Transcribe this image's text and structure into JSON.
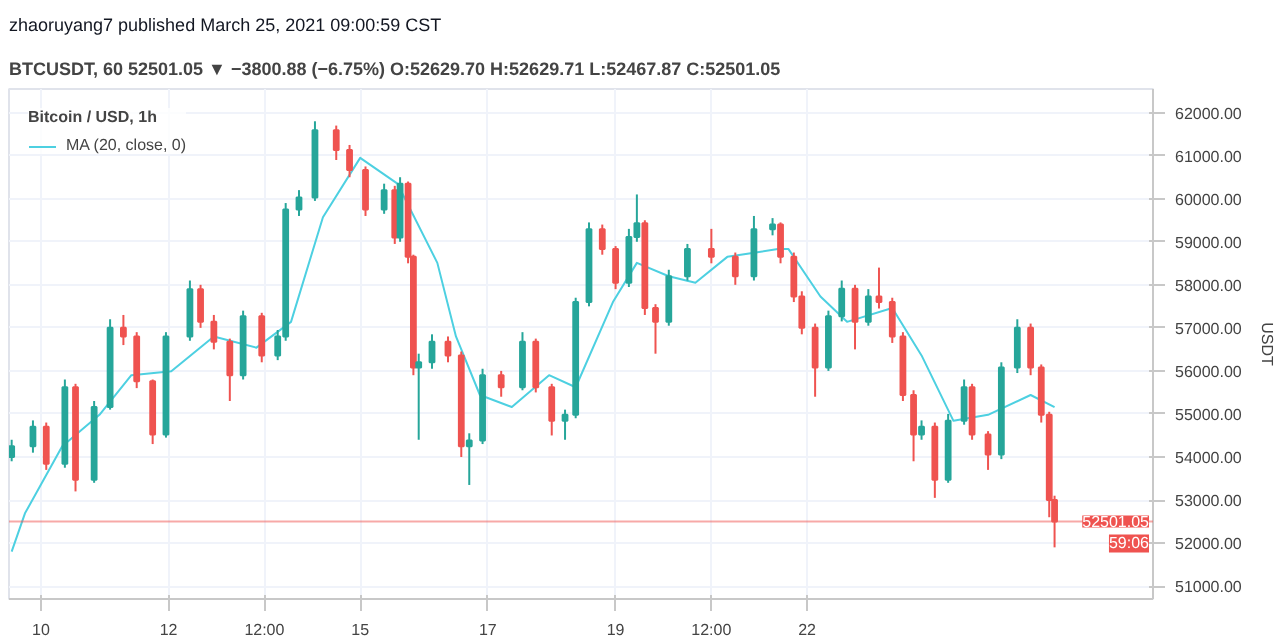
{
  "chart_data": {
    "type": "candlestick",
    "title": "zhaoruyang7 published March 25, 2021 09:00:59 CST",
    "subtitle": "BTCUSDT, 60  52501.05 ▼ −3800.88 (−6.75%)  O:52629.70  H:52629.71  L:52467.87  C:52501.05",
    "legend_title": "Bitcoin / USD, 1h",
    "ylabel": "USDT",
    "x": [
      "2021-03-09T13:00",
      "2021-03-09T21:00",
      "2021-03-10T02:00",
      "2021-03-10T09:00",
      "2021-03-10T13:00",
      "2021-03-10T20:00",
      "2021-03-11T02:00",
      "2021-03-11T07:00",
      "2021-03-11T12:00",
      "2021-03-11T18:00",
      "2021-03-11T23:00",
      "2021-03-12T08:00",
      "2021-03-12T12:00",
      "2021-03-12T17:00",
      "2021-03-12T23:00",
      "2021-03-13T04:00",
      "2021-03-13T11:00",
      "2021-03-13T17:00",
      "2021-03-13T20:00",
      "2021-03-14T01:00",
      "2021-03-14T07:00",
      "2021-03-14T15:00",
      "2021-03-14T20:00",
      "2021-03-15T02:00",
      "2021-03-15T09:00",
      "2021-03-15T13:00",
      "2021-03-15T15:00",
      "2021-03-15T18:00",
      "2021-03-15T20:00",
      "2021-03-15T22:00",
      "2021-03-16T03:00",
      "2021-03-16T09:00",
      "2021-03-16T14:00",
      "2021-03-16T17:00",
      "2021-03-16T22:00",
      "2021-03-17T05:00",
      "2021-03-17T13:00",
      "2021-03-17T18:00",
      "2021-03-18T00:00",
      "2021-03-18T05:00",
      "2021-03-18T09:00",
      "2021-03-18T14:00",
      "2021-03-18T19:00",
      "2021-03-19T00:00",
      "2021-03-19T05:00",
      "2021-03-19T08:00",
      "2021-03-19T11:00",
      "2021-03-19T15:00",
      "2021-03-19T20:00",
      "2021-03-20T03:00",
      "2021-03-20T12:00",
      "2021-03-20T21:00",
      "2021-03-21T04:00",
      "2021-03-21T11:00",
      "2021-03-21T14:00",
      "2021-03-21T19:00",
      "2021-03-21T22:00",
      "2021-03-22T03:00",
      "2021-03-22T08:00",
      "2021-03-22T13:00",
      "2021-03-22T18:00",
      "2021-03-22T23:00",
      "2021-03-23T03:00",
      "2021-03-23T08:00",
      "2021-03-23T12:00",
      "2021-03-23T16:00",
      "2021-03-23T19:00",
      "2021-03-24T00:00",
      "2021-03-24T05:00",
      "2021-03-24T11:00",
      "2021-03-24T14:00",
      "2021-03-24T20:00",
      "2021-03-25T01:00",
      "2021-03-25T07:00",
      "2021-03-25T12:00",
      "2021-03-25T16:00",
      "2021-03-25T19:00",
      "2021-03-25T21:00"
    ],
    "ohlc": [
      [
        54000,
        54400,
        53900,
        54250
      ],
      [
        54250,
        54850,
        54100,
        54700
      ],
      [
        54700,
        54800,
        53700,
        53840
      ],
      [
        53840,
        55800,
        53750,
        55620
      ],
      [
        55620,
        55700,
        53200,
        53470
      ],
      [
        53470,
        55300,
        53400,
        55160
      ],
      [
        55160,
        57200,
        55100,
        57000
      ],
      [
        57000,
        57300,
        56600,
        56800
      ],
      [
        56800,
        56900,
        55600,
        55760
      ],
      [
        55760,
        55800,
        54300,
        54520
      ],
      [
        54520,
        56900,
        54450,
        56800
      ],
      [
        56800,
        58100,
        56700,
        57900
      ],
      [
        57900,
        58000,
        57000,
        57140
      ],
      [
        57140,
        57300,
        56500,
        56680
      ],
      [
        56680,
        56750,
        55300,
        55900
      ],
      [
        55900,
        57400,
        55800,
        57270
      ],
      [
        57270,
        57350,
        56200,
        56360
      ],
      [
        56360,
        56950,
        56250,
        56800
      ],
      [
        56800,
        59900,
        56700,
        59750
      ],
      [
        59750,
        60200,
        59600,
        60030
      ],
      [
        60030,
        61800,
        59950,
        61590
      ],
      [
        61590,
        61700,
        60900,
        61130
      ],
      [
        61130,
        61250,
        60500,
        60670
      ],
      [
        60670,
        60750,
        59600,
        59750
      ],
      [
        59750,
        60350,
        59650,
        60200
      ],
      [
        60200,
        60300,
        58950,
        59100
      ],
      [
        59100,
        60500,
        59000,
        60350
      ],
      [
        60350,
        60400,
        58500,
        58650
      ],
      [
        58650,
        58700,
        55900,
        56080
      ],
      [
        56080,
        56400,
        54400,
        56200
      ],
      [
        56200,
        56850,
        56050,
        56680
      ],
      [
        56680,
        56800,
        56200,
        56360
      ],
      [
        56360,
        56450,
        54000,
        54250
      ],
      [
        54250,
        54550,
        53350,
        54380
      ],
      [
        54380,
        56050,
        54300,
        55900
      ],
      [
        55900,
        56000,
        55400,
        55620
      ],
      [
        55620,
        56900,
        55550,
        56680
      ],
      [
        56680,
        56750,
        55500,
        55620
      ],
      [
        55620,
        55700,
        54500,
        54840
      ],
      [
        54840,
        55100,
        54400,
        54980
      ],
      [
        54980,
        57700,
        54900,
        57600
      ],
      [
        57600,
        59450,
        57500,
        59290
      ],
      [
        59290,
        59400,
        58700,
        58830
      ],
      [
        58830,
        58900,
        57900,
        58050
      ],
      [
        58050,
        59300,
        57950,
        59110
      ],
      [
        59110,
        60100,
        59000,
        59430
      ],
      [
        59430,
        59500,
        57300,
        57460
      ],
      [
        57460,
        57550,
        56400,
        57140
      ],
      [
        57140,
        58350,
        57050,
        58200
      ],
      [
        58200,
        58950,
        58100,
        58830
      ],
      [
        58830,
        59300,
        58500,
        58650
      ],
      [
        58650,
        58750,
        58000,
        58200
      ],
      [
        58200,
        59600,
        58100,
        59290
      ],
      [
        59290,
        59550,
        59150,
        59400
      ],
      [
        59400,
        59450,
        58500,
        58650
      ],
      [
        58650,
        58750,
        57600,
        57730
      ],
      [
        57730,
        57850,
        56850,
        57000
      ],
      [
        57000,
        57100,
        55400,
        56080
      ],
      [
        56080,
        57400,
        56000,
        57270
      ],
      [
        57270,
        58100,
        57150,
        57910
      ],
      [
        57910,
        58000,
        56500,
        57140
      ],
      [
        57140,
        57900,
        57050,
        57730
      ],
      [
        57730,
        58400,
        57450,
        57600
      ],
      [
        57600,
        57700,
        56650,
        56800
      ],
      [
        56800,
        56900,
        55300,
        55440
      ],
      [
        55440,
        55550,
        53900,
        54520
      ],
      [
        54520,
        54850,
        54400,
        54700
      ],
      [
        54700,
        54800,
        53050,
        53470
      ],
      [
        53470,
        55000,
        53400,
        54840
      ],
      [
        54840,
        55800,
        54750,
        55620
      ],
      [
        55620,
        55700,
        54400,
        54520
      ],
      [
        54520,
        54600,
        53700,
        54060
      ],
      [
        54060,
        56200,
        53950,
        56080
      ],
      [
        56080,
        57200,
        55950,
        57000
      ],
      [
        57000,
        57100,
        55900,
        56080
      ],
      [
        56080,
        56150,
        54800,
        54980
      ],
      [
        54980,
        55050,
        52600,
        53000
      ],
      [
        53000,
        53100,
        51900,
        52501.05
      ]
    ],
    "colors": [
      "#26a69a",
      "#26a69a",
      "#ef5350",
      "#26a69a",
      "#ef5350",
      "#26a69a",
      "#26a69a",
      "#ef5350",
      "#ef5350",
      "#ef5350",
      "#26a69a",
      "#26a69a",
      "#ef5350",
      "#ef5350",
      "#ef5350",
      "#26a69a",
      "#ef5350",
      "#26a69a",
      "#26a69a",
      "#26a69a",
      "#26a69a",
      "#ef5350",
      "#ef5350",
      "#ef5350",
      "#26a69a",
      "#ef5350",
      "#26a69a",
      "#ef5350",
      "#ef5350",
      "#26a69a",
      "#26a69a",
      "#ef5350",
      "#ef5350",
      "#26a69a",
      "#26a69a",
      "#ef5350",
      "#26a69a",
      "#ef5350",
      "#ef5350",
      "#26a69a",
      "#26a69a",
      "#26a69a",
      "#ef5350",
      "#ef5350",
      "#26a69a",
      "#26a69a",
      "#ef5350",
      "#ef5350",
      "#26a69a",
      "#26a69a",
      "#ef5350",
      "#ef5350",
      "#26a69a",
      "#26a69a",
      "#ef5350",
      "#ef5350",
      "#ef5350",
      "#ef5350",
      "#26a69a",
      "#26a69a",
      "#ef5350",
      "#26a69a",
      "#ef5350",
      "#ef5350",
      "#ef5350",
      "#ef5350",
      "#26a69a",
      "#ef5350",
      "#26a69a",
      "#26a69a",
      "#ef5350",
      "#ef5350",
      "#26a69a",
      "#26a69a",
      "#ef5350",
      "#ef5350",
      "#ef5350",
      "#ef5350"
    ],
    "series": [
      {
        "type": "line",
        "name": "MA (20, close, 0)",
        "color": "#4dd0e1",
        "x": [
          "2021-03-09T13:00",
          "2021-03-09T18:00",
          "2021-03-10T08:00",
          "2021-03-10T22:00",
          "2021-03-11T10:00",
          "2021-03-12T01:00",
          "2021-03-12T17:00",
          "2021-03-13T09:00",
          "2021-03-13T22:00",
          "2021-03-14T10:00",
          "2021-03-15T00:00",
          "2021-03-15T14:00",
          "2021-03-16T05:00",
          "2021-03-16T12:00",
          "2021-03-16T21:00",
          "2021-03-17T09:00",
          "2021-03-17T23:00",
          "2021-03-18T09:00",
          "2021-03-18T23:00",
          "2021-03-19T08:00",
          "2021-03-19T20:00",
          "2021-03-20T06:00",
          "2021-03-20T18:00",
          "2021-03-21T13:00",
          "2021-03-21T17:00",
          "2021-03-22T05:00",
          "2021-03-22T15:00",
          "2021-03-23T08:00",
          "2021-03-23T19:00",
          "2021-03-24T07:00",
          "2021-03-24T20:00",
          "2021-03-25T12:00",
          "2021-03-25T21:00"
        ],
        "values": [
          51800,
          52690,
          54250,
          54980,
          55900,
          55990,
          56800,
          56540,
          57140,
          59570,
          60950,
          60350,
          58510,
          56800,
          55440,
          55160,
          55900,
          55620,
          57600,
          58510,
          58200,
          58050,
          58650,
          58830,
          58830,
          57730,
          57140,
          57460,
          56360,
          54840,
          54980,
          55440,
          55160
        ]
      }
    ],
    "ref_lines": [
      {
        "axis": "y",
        "value": 52501.05,
        "label": "52501.05",
        "color": "#ef5350",
        "line_style": "solid"
      }
    ],
    "annotations": [
      "59:06"
    ],
    "xlim": [
      "2021-03-09T12:00",
      "2021-03-27T10:00"
    ],
    "ylim": [
      50700,
      62550
    ],
    "xticks": [
      {
        "value": "2021-03-10",
        "label": "10"
      },
      {
        "value": "2021-03-12",
        "label": "12"
      },
      {
        "value": "2021-03-13T12:00",
        "label": "12:00"
      },
      {
        "value": "2021-03-15",
        "label": "15"
      },
      {
        "value": "2021-03-17",
        "label": "17"
      },
      {
        "value": "2021-03-19",
        "label": "19"
      },
      {
        "value": "2021-03-20T12:00",
        "label": "12:00"
      },
      {
        "value": "2021-03-22",
        "label": "22"
      }
    ],
    "yticks": [
      {
        "value": 51000,
        "label": "51000.00"
      },
      {
        "value": 52000,
        "label": "52000.00"
      },
      {
        "value": 53000,
        "label": "53000.00"
      },
      {
        "value": 54000,
        "label": "54000.00"
      },
      {
        "value": 55000,
        "label": "55000.00"
      },
      {
        "value": 56000,
        "label": "56000.00"
      },
      {
        "value": 57000,
        "label": "57000.00"
      },
      {
        "value": 58000,
        "label": "58000.00"
      },
      {
        "value": 59000,
        "label": "59000.00"
      },
      {
        "value": 60000,
        "label": "60000.00"
      },
      {
        "value": 61000,
        "label": "61000.00"
      },
      {
        "value": 62000,
        "label": "62000.00"
      }
    ],
    "grid": true,
    "legend": "top left"
  }
}
